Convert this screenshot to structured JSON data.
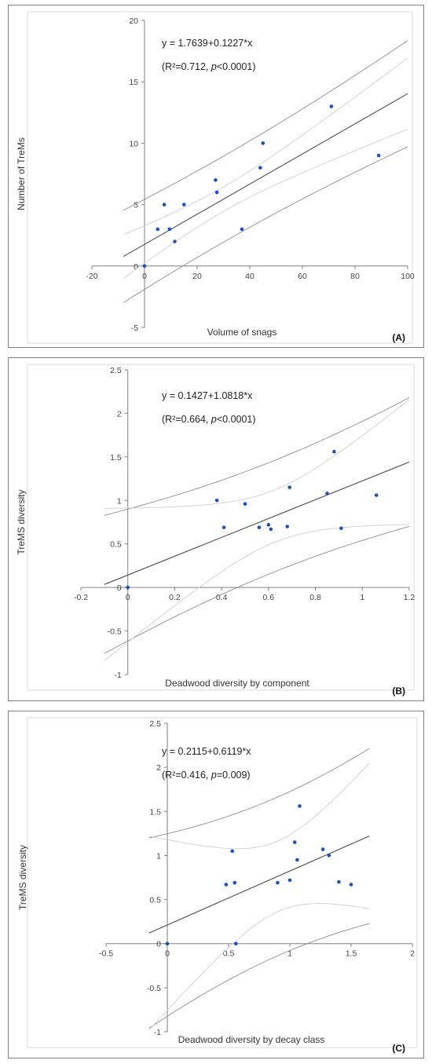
{
  "chart_data": [
    {
      "id": "A",
      "type": "scatter",
      "panel_label": "(A)",
      "equation": "y = 1.7639+0.1227*x",
      "stats_r2": "(R²=0.712, ",
      "stats_p_italic": "p",
      "stats_p_rest": "<0.0001)",
      "xlabel": "Volume of snags",
      "ylabel": "Number of TreMs",
      "xlim": [
        -20,
        100
      ],
      "ylim": [
        -5,
        20
      ],
      "x_ticks": [
        -20,
        0,
        20,
        40,
        60,
        80,
        100
      ],
      "y_ticks": [
        -5,
        0,
        5,
        10,
        15,
        20
      ],
      "x_tick_labels": [
        "-20",
        "0",
        "20",
        "40",
        "60",
        "80",
        "100"
      ],
      "y_tick_labels": [
        "-5",
        "0",
        "5",
        "10",
        "15",
        "20"
      ],
      "fit": {
        "intercept": 1.7639,
        "slope": 0.1227,
        "x_range": [
          -8,
          100
        ]
      },
      "bands": {
        "ci_half": 1.0,
        "pi_half": 3.5
      },
      "points": [
        [
          0,
          0
        ],
        [
          5,
          3
        ],
        [
          7.5,
          5
        ],
        [
          9.5,
          3
        ],
        [
          11.5,
          2
        ],
        [
          15,
          5
        ],
        [
          27,
          7
        ],
        [
          27.5,
          6
        ],
        [
          37,
          3
        ],
        [
          44,
          8
        ],
        [
          45,
          10
        ],
        [
          71,
          13
        ],
        [
          89,
          9
        ]
      ]
    },
    {
      "id": "B",
      "type": "scatter",
      "panel_label": "(B)",
      "equation": "y = 0.1427+1.0818*x",
      "stats_r2": "(R²=0.664, ",
      "stats_p_italic": "p",
      "stats_p_rest": "<0.0001)",
      "xlabel": "Deadwood diversity by component",
      "ylabel": "TreMS diversity",
      "xlim": [
        -0.2,
        1.2
      ],
      "ylim": [
        -1,
        2.5
      ],
      "x_ticks": [
        -0.2,
        0,
        0.2,
        0.4,
        0.6,
        0.8,
        1,
        1.2
      ],
      "y_ticks": [
        -1,
        -0.5,
        0,
        0.5,
        1,
        1.5,
        2,
        2.5
      ],
      "x_tick_labels": [
        "-0.2",
        "0",
        "0.2",
        "0.4",
        "0.6",
        "0.8",
        "1",
        "1.2"
      ],
      "y_tick_labels": [
        "-1",
        "-0.5",
        "0",
        "0.5",
        "1",
        "1.5",
        "2",
        "2.5"
      ],
      "fit": {
        "intercept": 0.1427,
        "slope": 1.0818,
        "x_range": [
          -0.1,
          1.2
        ]
      },
      "bands": {
        "ci_half": 0.3,
        "pi_half": 0.64
      },
      "points": [
        [
          0,
          0
        ],
        [
          0.38,
          1.0
        ],
        [
          0.41,
          0.69
        ],
        [
          0.5,
          0.96
        ],
        [
          0.56,
          0.69
        ],
        [
          0.6,
          0.72
        ],
        [
          0.61,
          0.67
        ],
        [
          0.68,
          0.7
        ],
        [
          0.69,
          1.15
        ],
        [
          0.85,
          1.08
        ],
        [
          0.88,
          1.56
        ],
        [
          0.91,
          0.68
        ],
        [
          1.06,
          1.06
        ]
      ]
    },
    {
      "id": "C",
      "type": "scatter",
      "panel_label": "(C)",
      "equation": "y = 0.2115+0.6119*x",
      "stats_r2": "(R²=0.416, ",
      "stats_p_italic": "p",
      "stats_p_rest": "=0.009)",
      "xlabel": "Deadwood diversity by decay class",
      "ylabel": "TreMS diversity",
      "xlim": [
        -0.5,
        2
      ],
      "ylim": [
        -1,
        2.5
      ],
      "x_ticks": [
        -0.5,
        0,
        0.5,
        1,
        1.5,
        2
      ],
      "y_ticks": [
        -1,
        -0.5,
        0,
        0.5,
        1,
        1.5,
        2,
        2.5
      ],
      "x_tick_labels": [
        "-0.5",
        "0",
        "0.5",
        "1",
        "1.5",
        "2"
      ],
      "y_tick_labels": [
        "-1",
        "-0.5",
        "0",
        "0.5",
        "1",
        "1.5",
        "2",
        "2.5"
      ],
      "fit": {
        "intercept": 0.2115,
        "slope": 0.6119,
        "x_range": [
          -0.15,
          1.65
        ]
      },
      "bands": {
        "ci_half": 0.4,
        "pi_half": 0.9
      },
      "points": [
        [
          0,
          0
        ],
        [
          0.48,
          0.67
        ],
        [
          0.53,
          1.05
        ],
        [
          0.55,
          0.69
        ],
        [
          0.56,
          0
        ],
        [
          0.9,
          0.69
        ],
        [
          1.0,
          0.72
        ],
        [
          1.04,
          1.15
        ],
        [
          1.06,
          0.95
        ],
        [
          1.08,
          1.56
        ],
        [
          1.27,
          1.07
        ],
        [
          1.32,
          1.0
        ],
        [
          1.4,
          0.7
        ],
        [
          1.5,
          0.67
        ]
      ]
    }
  ]
}
